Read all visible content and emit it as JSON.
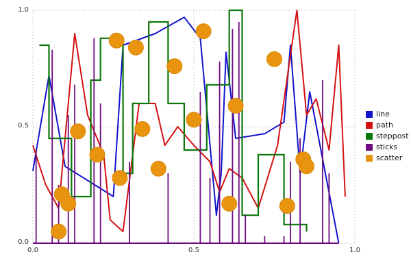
{
  "figure": {
    "background": "#ffffff",
    "grid_color": "#bbbbbb",
    "tick_color": "#333333"
  },
  "chart_data": {
    "type": "mixed",
    "title": "",
    "xlabel": "",
    "ylabel": "",
    "xlim": [
      0,
      1
    ],
    "ylim": [
      0,
      1
    ],
    "xticks": [
      0,
      0.5,
      1
    ],
    "yticks": [
      0,
      0.5,
      1
    ],
    "xtick_labels": [
      "0.0",
      "0.5",
      "1.0"
    ],
    "ytick_labels": [
      "0.0",
      "0.5",
      "1.0"
    ],
    "grid": "dotted",
    "legend_position": "right",
    "series": [
      {
        "name": "line",
        "type": "line",
        "color": "#1212cc",
        "x": [
          0.0,
          0.05,
          0.1,
          0.25,
          0.28,
          0.38,
          0.47,
          0.52,
          0.57,
          0.585,
          0.6,
          0.63,
          0.72,
          0.78,
          0.8,
          0.83,
          0.86,
          0.95
        ],
        "y": [
          0.31,
          0.72,
          0.33,
          0.2,
          0.85,
          0.9,
          0.97,
          0.88,
          0.12,
          0.3,
          0.82,
          0.45,
          0.47,
          0.52,
          0.85,
          0.3,
          0.65,
          0.0
        ]
      },
      {
        "name": "path",
        "type": "line",
        "color": "#d41111",
        "x": [
          0.0,
          0.04,
          0.08,
          0.13,
          0.17,
          0.22,
          0.24,
          0.28,
          0.33,
          0.38,
          0.41,
          0.45,
          0.5,
          0.55,
          0.58,
          0.61,
          0.65,
          0.7,
          0.76,
          0.82,
          0.85,
          0.88,
          0.92,
          0.95,
          0.97
        ],
        "y": [
          0.42,
          0.25,
          0.15,
          0.9,
          0.55,
          0.38,
          0.1,
          0.05,
          0.6,
          0.6,
          0.42,
          0.5,
          0.42,
          0.35,
          0.22,
          0.32,
          0.28,
          0.15,
          0.42,
          1.0,
          0.55,
          0.62,
          0.4,
          0.85,
          0.2
        ]
      },
      {
        "name": "steppost",
        "type": "step",
        "color": "#0a780a",
        "x": [
          0.02,
          0.05,
          0.12,
          0.18,
          0.21,
          0.28,
          0.31,
          0.36,
          0.42,
          0.47,
          0.54,
          0.61,
          0.65,
          0.7,
          0.78,
          0.85
        ],
        "y": [
          0.85,
          0.45,
          0.2,
          0.7,
          0.88,
          0.3,
          0.6,
          0.95,
          0.6,
          0.4,
          0.68,
          1.0,
          0.12,
          0.38,
          0.08,
          0.05
        ]
      },
      {
        "name": "sticks",
        "type": "sticks",
        "color": "#6e0b80",
        "baseline_x": [
          0.0,
          0.95
        ],
        "x": [
          0.01,
          0.06,
          0.08,
          0.11,
          0.13,
          0.19,
          0.21,
          0.3,
          0.42,
          0.52,
          0.55,
          0.58,
          0.62,
          0.64,
          0.66,
          0.72,
          0.78,
          0.8,
          0.83,
          0.9,
          0.92
        ],
        "y": [
          0.4,
          0.83,
          0.25,
          0.55,
          0.68,
          0.88,
          0.6,
          0.35,
          0.3,
          0.65,
          0.28,
          0.78,
          0.92,
          0.95,
          0.12,
          0.03,
          0.03,
          0.35,
          0.45,
          0.7,
          0.3
        ]
      },
      {
        "name": "scatter",
        "type": "scatter",
        "color": "#e8940f",
        "marker_edge": "#d9880a",
        "marker_radius": 11,
        "x": [
          0.08,
          0.09,
          0.11,
          0.14,
          0.2,
          0.26,
          0.27,
          0.32,
          0.34,
          0.39,
          0.44,
          0.5,
          0.53,
          0.61,
          0.63,
          0.75,
          0.79,
          0.84,
          0.85
        ],
        "y": [
          0.05,
          0.21,
          0.17,
          0.48,
          0.38,
          0.87,
          0.28,
          0.84,
          0.49,
          0.32,
          0.76,
          0.53,
          0.91,
          0.17,
          0.59,
          0.79,
          0.16,
          0.36,
          0.33
        ]
      }
    ]
  }
}
